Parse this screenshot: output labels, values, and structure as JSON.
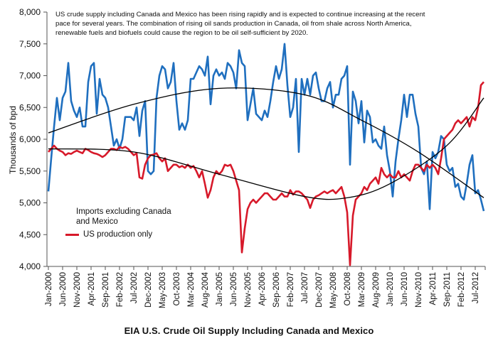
{
  "chart_data": {
    "type": "line",
    "title": "EIA U.S. Crude Oil Supply Including Canada and Mexico",
    "annotation": "US crude supply including Canada and Mexico has been rising rapidly and is expected to continue increasing at the recent pace for several years. The combination of rising oil sands production in Canada, oil from shale across North America, renewable fuels and biofuels could cause the region to be oil self-sufficient by 2020.",
    "xlabel": "",
    "ylabel": "Thousands of bpd",
    "ylim": [
      4000,
      8000
    ],
    "yticks": [
      "4,000",
      "4,500",
      "5,000",
      "5,500",
      "6,000",
      "6,500",
      "7,000",
      "7,500",
      "8,000"
    ],
    "x_start": "Jan-2000",
    "x_frequency": "monthly",
    "xticks": [
      "Jan-2000",
      "Jun-2000",
      "Nov-2000",
      "Apr-2001",
      "Sep-2001",
      "Feb-2002",
      "Jul-2002",
      "Dec-2002",
      "May-2003",
      "Oct-2003",
      "Mar-2004",
      "Aug-2004",
      "Jan-2005",
      "Jun-2005",
      "Nov-2005",
      "Apr-2006",
      "Sep-2006",
      "Feb-2007",
      "Jul-2007",
      "Dec-2007",
      "May-2008",
      "Oct-2008",
      "Mar-2009",
      "Aug-2009",
      "Jan-2010",
      "Jun-2010",
      "Nov-2010",
      "Apr-2011",
      "Sep-2011",
      "Feb-2012",
      "Jul-2012"
    ],
    "grid": false,
    "legend_placement": "lower-left",
    "series": [
      {
        "name": "Imports excluding Canada and Mexico",
        "color": "#1f6fbf",
        "show_legend_line": false,
        "values": [
          5180,
          5700,
          6200,
          6650,
          6300,
          6650,
          6750,
          7200,
          6600,
          6450,
          6350,
          6500,
          6200,
          6200,
          6900,
          7150,
          7200,
          6400,
          6950,
          6700,
          6650,
          6500,
          6200,
          5900,
          6000,
          5850,
          6000,
          6350,
          6350,
          6350,
          6300,
          6500,
          6050,
          6450,
          6600,
          5500,
          5450,
          5500,
          6650,
          7000,
          7150,
          7100,
          6800,
          6900,
          7200,
          6600,
          6150,
          6250,
          6150,
          6300,
          6950,
          6950,
          7050,
          7150,
          7100,
          7000,
          7300,
          6550,
          7000,
          7100,
          7000,
          7050,
          6950,
          7200,
          7150,
          7050,
          6800,
          7400,
          7200,
          7150,
          6300,
          6550,
          6800,
          6400,
          6350,
          6300,
          6450,
          6350,
          6600,
          6900,
          7150,
          6950,
          7100,
          7500,
          6850,
          6350,
          6500,
          6950,
          5800,
          6950,
          6700,
          6950,
          6700,
          7000,
          7050,
          6800,
          6600,
          6600,
          6800,
          6900,
          6500,
          6700,
          6700,
          6950,
          7000,
          7150,
          5600,
          6750,
          6600,
          6250,
          6600,
          5950,
          6450,
          6350,
          5950,
          6000,
          5900,
          5850,
          6200,
          5750,
          5500,
          5100,
          5650,
          6000,
          6300,
          6700,
          6350,
          6700,
          6700,
          6400,
          6200,
          5550,
          5450,
          5650,
          4900,
          5800,
          5700,
          5800,
          6050,
          6000,
          5600,
          5500,
          5550,
          5250,
          5300,
          5100,
          5050,
          5300,
          5600,
          5750,
          5150,
          5200,
          5050,
          4870
        ]
      },
      {
        "name": "US production only",
        "color": "#d7192a",
        "show_legend_line": true,
        "values": [
          5800,
          5850,
          5900,
          5850,
          5820,
          5800,
          5750,
          5780,
          5770,
          5800,
          5820,
          5800,
          5780,
          5850,
          5830,
          5800,
          5780,
          5770,
          5750,
          5720,
          5750,
          5800,
          5850,
          5850,
          5830,
          5880,
          5860,
          5880,
          5850,
          5800,
          5750,
          5780,
          5400,
          5380,
          5600,
          5700,
          5750,
          5760,
          5780,
          5700,
          5650,
          5700,
          5500,
          5550,
          5600,
          5600,
          5560,
          5580,
          5550,
          5600,
          5550,
          5580,
          5500,
          5400,
          5500,
          5300,
          5080,
          5200,
          5400,
          5500,
          5450,
          5500,
          5600,
          5580,
          5600,
          5500,
          5350,
          5200,
          4220,
          4600,
          4900,
          5000,
          5050,
          5000,
          5050,
          5100,
          5150,
          5150,
          5100,
          5050,
          5050,
          5100,
          5150,
          5100,
          5100,
          5200,
          5130,
          5180,
          5180,
          5150,
          5100,
          5050,
          4920,
          5050,
          5100,
          5120,
          5150,
          5180,
          5150,
          5180,
          5200,
          5150,
          5200,
          5250,
          5100,
          4850,
          4020,
          4800,
          5050,
          5100,
          5150,
          5250,
          5200,
          5300,
          5350,
          5400,
          5300,
          5550,
          5450,
          5400,
          5450,
          5400,
          5400,
          5500,
          5400,
          5450,
          5400,
          5350,
          5500,
          5600,
          5600,
          5550,
          5500,
          5600,
          5550,
          5600,
          5550,
          5450,
          5700,
          6000,
          6050,
          6100,
          6150,
          6250,
          6300,
          6250,
          6300,
          6350,
          6200,
          6350,
          6300,
          6500,
          6850,
          6900
        ]
      }
    ],
    "trendlines": [
      {
        "of": "Imports excluding Canada and Mexico",
        "color": "#000000",
        "points": [
          [
            0,
            6100
          ],
          [
            30,
            6550
          ],
          [
            60,
            6800
          ],
          [
            90,
            6700
          ],
          [
            110,
            6300
          ],
          [
            130,
            5800
          ],
          [
            153,
            5080
          ]
        ]
      },
      {
        "of": "US production only",
        "color": "#000000",
        "points": [
          [
            0,
            5850
          ],
          [
            30,
            5800
          ],
          [
            60,
            5450
          ],
          [
            90,
            5100
          ],
          [
            105,
            5080
          ],
          [
            120,
            5300
          ],
          [
            140,
            5900
          ],
          [
            153,
            6650
          ]
        ]
      }
    ]
  }
}
